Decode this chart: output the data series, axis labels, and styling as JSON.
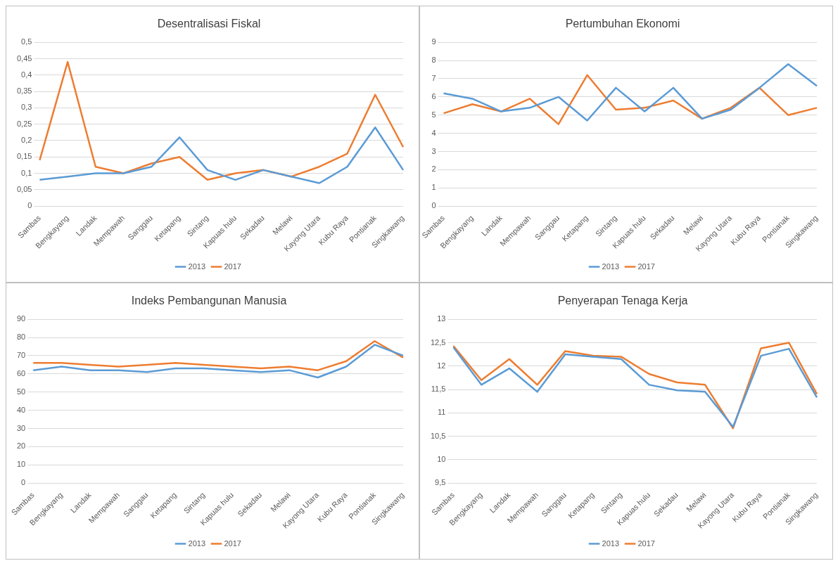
{
  "chart_data": [
    {
      "type": "line",
      "title": "Desentralisasi Fiskal",
      "categories": [
        "Sambas",
        "Bengkayang",
        "Landak",
        "Mempawah",
        "Sanggau",
        "Ketapang",
        "Sintang",
        "Kapuas hulu",
        "Sekadau",
        "Melawi",
        "Kayong Utara",
        "Kubu Raya",
        "Pontianak",
        "Singkawang"
      ],
      "series": [
        {
          "name": "2013",
          "color": "#5b9bd5",
          "values": [
            0.08,
            0.09,
            0.1,
            0.1,
            0.12,
            0.21,
            0.11,
            0.08,
            0.11,
            0.09,
            0.07,
            0.12,
            0.24,
            0.11
          ]
        },
        {
          "name": "2017",
          "color": "#ed7d31",
          "values": [
            0.14,
            0.44,
            0.12,
            0.1,
            0.13,
            0.15,
            0.08,
            0.1,
            0.11,
            0.09,
            0.12,
            0.16,
            0.34,
            0.18
          ]
        }
      ],
      "ylim": [
        0,
        0.5
      ],
      "yticks": [
        0,
        {
          "value": 0.05,
          "label": "0,05"
        },
        {
          "value": 0.1,
          "label": "0,1"
        },
        {
          "value": 0.15,
          "label": "0,15"
        },
        {
          "value": 0.2,
          "label": "0,2"
        },
        {
          "value": 0.25,
          "label": "0,25"
        },
        {
          "value": 0.3,
          "label": "0,3"
        },
        {
          "value": 0.35,
          "label": "0,35"
        },
        {
          "value": 0.4,
          "label": "0,4"
        },
        {
          "value": 0.45,
          "label": "0,45"
        },
        {
          "value": 0.5,
          "label": "0,5"
        }
      ],
      "grid": "y",
      "legend": "bottom",
      "marker": "none",
      "line_style": "solid"
    },
    {
      "type": "line",
      "title": "Pertumbuhan Ekonomi",
      "categories": [
        "Sambas",
        "Bengkayang",
        "Landak",
        "Mempawah",
        "Sanggau",
        "Ketapang",
        "Sintang",
        "Kapuas hulu",
        "Sekadau",
        "Melawi",
        "Kayong Utara",
        "Kubu Raya",
        "Pontianak",
        "Singkawang"
      ],
      "series": [
        {
          "name": "2013",
          "color": "#5b9bd5",
          "values": [
            6.2,
            5.9,
            5.2,
            5.4,
            6.0,
            4.7,
            6.5,
            5.2,
            6.5,
            4.8,
            5.3,
            6.5,
            7.8,
            6.6
          ]
        },
        {
          "name": "2017",
          "color": "#ed7d31",
          "values": [
            5.1,
            5.6,
            5.2,
            5.9,
            4.5,
            7.2,
            5.3,
            5.4,
            5.8,
            4.8,
            5.4,
            6.5,
            5.0,
            5.4
          ]
        }
      ],
      "ylim": [
        0,
        9
      ],
      "yticks": [
        0,
        1,
        2,
        3,
        4,
        5,
        6,
        7,
        8,
        9
      ],
      "grid": "y",
      "legend": "bottom",
      "marker": "none",
      "line_style": "solid"
    },
    {
      "type": "line",
      "title": "Indeks Pembangunan Manusia",
      "categories": [
        "Sambas",
        "Bengkayang",
        "Landak",
        "Mempawah",
        "Sanggau",
        "Ketapang",
        "Sintang",
        "Kapuas hulu",
        "Sekadau",
        "Melawi",
        "Kayong Utara",
        "Kubu Raya",
        "Pontianak",
        "Singkawang"
      ],
      "series": [
        {
          "name": "2013",
          "color": "#5b9bd5",
          "values": [
            62,
            64,
            62,
            62,
            61,
            63,
            63,
            62,
            61,
            62,
            58,
            64,
            76,
            70
          ]
        },
        {
          "name": "2017",
          "color": "#ed7d31",
          "values": [
            66,
            66,
            65,
            64,
            65,
            66,
            65,
            64,
            63,
            64,
            62,
            67,
            78,
            69
          ]
        }
      ],
      "ylim": [
        0,
        90
      ],
      "yticks": [
        0,
        10,
        20,
        30,
        40,
        50,
        60,
        70,
        80,
        90
      ],
      "grid": "y",
      "legend": "bottom",
      "marker": "none",
      "line_style": "solid"
    },
    {
      "type": "line",
      "title": "Penyerapan Tenaga Kerja",
      "categories": [
        "Sambas",
        "Bengkayang",
        "Landak",
        "Mempawah",
        "Sanggau",
        "Ketapang",
        "Sintang",
        "Kapuas hulu",
        "Sekadau",
        "Melawi",
        "Kayong Utara",
        "Kubu Raya",
        "Pontianak",
        "Singkawang"
      ],
      "series": [
        {
          "name": "2013",
          "color": "#5b9bd5",
          "values": [
            12.4,
            11.6,
            11.95,
            11.45,
            12.25,
            12.2,
            12.15,
            11.6,
            11.48,
            11.45,
            10.7,
            12.22,
            12.37,
            11.33
          ]
        },
        {
          "name": "2017",
          "color": "#ed7d31",
          "values": [
            12.43,
            11.7,
            12.15,
            11.6,
            12.32,
            12.22,
            12.2,
            11.83,
            11.65,
            11.6,
            10.67,
            12.38,
            12.5,
            11.4
          ]
        }
      ],
      "ylim": [
        9.5,
        13
      ],
      "yticks": [
        {
          "value": 9.5,
          "label": "9,5"
        },
        10,
        {
          "value": 10.5,
          "label": "10,5"
        },
        11,
        {
          "value": 11.5,
          "label": "11,5"
        },
        12,
        {
          "value": 12.5,
          "label": "12,5"
        },
        13
      ],
      "grid": "y",
      "legend": "bottom",
      "marker": "none",
      "line_style": "solid"
    }
  ]
}
